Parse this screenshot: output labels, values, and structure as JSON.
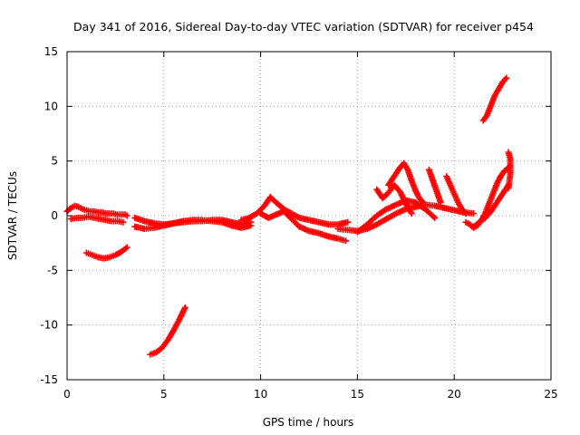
{
  "chart_data": {
    "type": "scatter",
    "title": "Day 341 of 2016, Sidereal Day-to-day VTEC variation (SDTVAR) for receiver p454",
    "xlabel": "GPS time / hours",
    "ylabel": "SDTVAR / TECUs",
    "xlim": [
      0,
      25
    ],
    "ylim": [
      -15,
      15
    ],
    "xticks": [
      0,
      5,
      10,
      15,
      20,
      25
    ],
    "yticks": [
      -15,
      -10,
      -5,
      0,
      5,
      10,
      15
    ],
    "xtick_labels": [
      "0",
      "5",
      "10",
      "15",
      "20",
      "25"
    ],
    "ytick_labels": [
      "-15",
      "-10",
      "-5",
      "0",
      "5",
      "10",
      "15"
    ],
    "grid": true,
    "marker": "plus",
    "color": "#ff0000",
    "series": [
      {
        "name": "arc-1",
        "x": [
          0.0,
          0.2,
          0.4,
          0.6,
          0.8,
          1.0,
          1.2,
          1.4,
          1.6,
          1.8,
          2.0,
          2.2,
          2.4,
          2.6,
          2.8,
          3.0,
          3.1
        ],
        "y": [
          0.4,
          0.7,
          0.9,
          0.8,
          0.6,
          0.5,
          0.4,
          0.4,
          0.3,
          0.3,
          0.2,
          0.2,
          0.2,
          0.1,
          0.1,
          0.1,
          0.0
        ]
      },
      {
        "name": "arc-2",
        "x": [
          0.2,
          0.5,
          0.8,
          1.1,
          1.4,
          1.7,
          2.0,
          2.3,
          2.6,
          2.9
        ],
        "y": [
          -0.3,
          -0.2,
          -0.2,
          -0.1,
          -0.2,
          -0.3,
          -0.4,
          -0.5,
          -0.5,
          -0.6
        ]
      },
      {
        "name": "arc-3",
        "x": [
          1.0,
          1.3,
          1.6,
          1.9,
          2.2,
          2.5,
          2.8,
          3.1
        ],
        "y": [
          -3.4,
          -3.6,
          -3.8,
          -3.9,
          -3.8,
          -3.6,
          -3.3,
          -2.9
        ]
      },
      {
        "name": "arc-4",
        "x": [
          4.3,
          4.6,
          4.9,
          5.2,
          5.5,
          5.8,
          6.1
        ],
        "y": [
          -12.7,
          -12.5,
          -12.1,
          -11.4,
          -10.5,
          -9.5,
          -8.4
        ]
      },
      {
        "name": "arc-5",
        "x": [
          3.5,
          4.0,
          4.5,
          5.0,
          5.5,
          6.0,
          6.5,
          7.0,
          7.5,
          8.0,
          8.5,
          9.0,
          9.5
        ],
        "y": [
          -0.2,
          -0.5,
          -0.7,
          -0.8,
          -0.7,
          -0.6,
          -0.5,
          -0.5,
          -0.4,
          -0.4,
          -0.6,
          -0.8,
          -0.6
        ]
      },
      {
        "name": "arc-6",
        "x": [
          3.5,
          4.0,
          4.5,
          5.0,
          5.5,
          6.0,
          6.5,
          7.0,
          7.5,
          8.0,
          8.5,
          9.0,
          9.5
        ],
        "y": [
          -1.0,
          -1.2,
          -1.1,
          -0.9,
          -0.7,
          -0.5,
          -0.4,
          -0.4,
          -0.5,
          -0.6,
          -0.9,
          -1.1,
          -0.9
        ]
      },
      {
        "name": "arc-7",
        "x": [
          9.0,
          9.4,
          9.8,
          10.2,
          10.5,
          10.8,
          11.2,
          11.6,
          12.0,
          12.5,
          13.0,
          13.5,
          14.0,
          14.5
        ],
        "y": [
          -0.4,
          -0.2,
          0.2,
          0.9,
          1.7,
          1.2,
          0.6,
          0.2,
          -0.2,
          -0.4,
          -0.6,
          -0.8,
          -0.8,
          -0.6
        ]
      },
      {
        "name": "arc-8",
        "x": [
          10.0,
          10.4,
          10.8,
          11.2,
          11.6,
          12.0,
          12.5,
          13.0,
          13.5,
          14.0,
          14.4
        ],
        "y": [
          0.2,
          -0.2,
          0.1,
          0.4,
          -0.3,
          -1.0,
          -1.4,
          -1.6,
          -1.9,
          -2.1,
          -2.3
        ]
      },
      {
        "name": "arc-9",
        "x": [
          14.0,
          14.5,
          15.0,
          15.5,
          16.0,
          16.5,
          17.0,
          17.5,
          18.0,
          18.5,
          19.0,
          19.5,
          20.0,
          20.5,
          21.0
        ],
        "y": [
          -1.2,
          -1.3,
          -1.4,
          -1.2,
          -0.8,
          -0.3,
          0.2,
          0.6,
          0.8,
          1.0,
          0.9,
          0.7,
          0.5,
          0.3,
          0.2
        ]
      },
      {
        "name": "arc-10",
        "x": [
          15.0,
          15.5,
          16.0,
          16.5,
          17.0,
          17.5,
          18.0,
          18.5,
          19.0
        ],
        "y": [
          -1.5,
          -0.8,
          0.0,
          0.6,
          1.0,
          1.4,
          1.2,
          0.6,
          -0.2
        ]
      },
      {
        "name": "arc-11",
        "x": [
          16.6,
          16.9,
          17.2,
          17.4,
          17.6,
          17.8,
          18.0,
          18.2,
          18.4
        ],
        "y": [
          2.8,
          3.6,
          4.4,
          4.8,
          4.2,
          3.2,
          2.3,
          1.6,
          1.2
        ]
      },
      {
        "name": "arc-12",
        "x": [
          16.0,
          16.3,
          16.6,
          16.9,
          17.2,
          17.5,
          17.8
        ],
        "y": [
          2.4,
          1.6,
          2.1,
          2.8,
          2.2,
          1.1,
          0.2
        ]
      },
      {
        "name": "arc-13",
        "x": [
          18.7,
          18.9,
          19.1,
          19.3
        ],
        "y": [
          4.2,
          3.2,
          2.2,
          1.2
        ]
      },
      {
        "name": "arc-14",
        "x": [
          19.6,
          19.8,
          20.0,
          20.2,
          20.4,
          20.6
        ],
        "y": [
          3.6,
          2.8,
          2.0,
          1.2,
          0.6,
          0.2
        ]
      },
      {
        "name": "arc-15",
        "x": [
          20.6,
          20.8,
          21.0,
          21.2,
          21.4,
          21.6,
          21.8,
          22.0,
          22.2,
          22.4,
          22.6,
          22.8
        ],
        "y": [
          -0.6,
          -0.8,
          -1.1,
          -0.9,
          -0.4,
          0.2,
          1.1,
          2.0,
          2.9,
          3.6,
          4.1,
          4.4
        ]
      },
      {
        "name": "arc-16",
        "x": [
          21.0,
          21.3,
          21.6,
          21.9,
          22.2,
          22.5,
          22.8
        ],
        "y": [
          -1.0,
          -0.6,
          -0.2,
          0.4,
          1.2,
          2.0,
          2.8
        ]
      },
      {
        "name": "arc-17",
        "x": [
          21.5,
          21.7,
          21.9,
          22.1,
          22.3,
          22.5,
          22.7
        ],
        "y": [
          8.7,
          9.2,
          10.1,
          11.0,
          11.6,
          12.2,
          12.6
        ]
      },
      {
        "name": "arc-18",
        "x": [
          22.8,
          22.9,
          22.9,
          22.8
        ],
        "y": [
          5.8,
          5.2,
          3.8,
          2.5
        ]
      }
    ]
  }
}
